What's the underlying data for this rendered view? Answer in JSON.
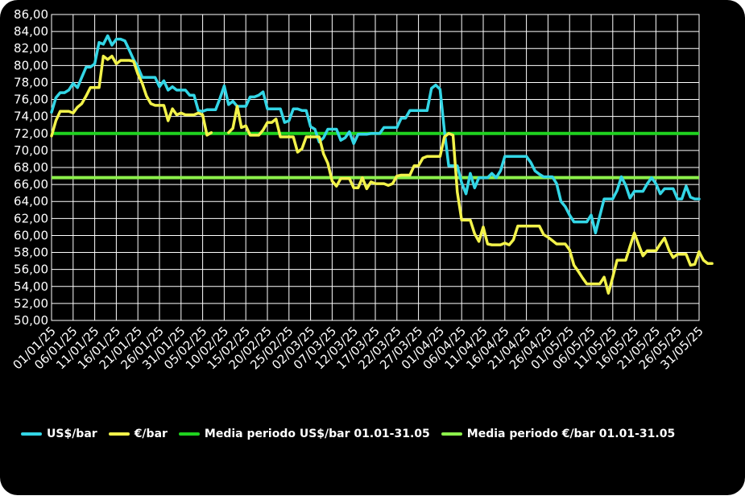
{
  "chart_data": {
    "type": "line",
    "title": "",
    "xlabel": "",
    "ylabel": "",
    "ylim": [
      50,
      86
    ],
    "y_ticks": [
      "50,00",
      "52,00",
      "54,00",
      "56,00",
      "58,00",
      "60,00",
      "62,00",
      "64,00",
      "66,00",
      "68,00",
      "70,00",
      "72,00",
      "74,00",
      "76,00",
      "78,00",
      "80,00",
      "82,00",
      "84,00",
      "86,00"
    ],
    "x_ticks": [
      "01/01/25",
      "06/01/25",
      "11/01/25",
      "16/01/25",
      "21/01/25",
      "26/01/25",
      "31/01/25",
      "05/02/25",
      "10/02/25",
      "15/02/25",
      "20/02/25",
      "25/02/25",
      "02/03/25",
      "07/03/25",
      "12/03/25",
      "17/03/25",
      "22/03/25",
      "27/03/25",
      "01/04/25",
      "06/04/25",
      "11/04/25",
      "16/04/25",
      "21/04/25",
      "26/04/25",
      "01/05/25",
      "06/05/25",
      "11/05/25",
      "16/05/25",
      "21/05/25",
      "26/05/25",
      "31/05/25"
    ],
    "grid": true,
    "legend_position": "bottom",
    "series": [
      {
        "name": "US$/bar",
        "color": "#33d6e6",
        "points": [
          [
            0,
            74.5
          ],
          [
            1,
            76.2
          ],
          [
            2,
            76.8
          ],
          [
            3,
            76.8
          ],
          [
            4,
            77.1
          ],
          [
            5,
            77.9
          ],
          [
            6,
            77.4
          ],
          [
            7,
            78.6
          ],
          [
            8,
            79.8
          ],
          [
            9,
            79.8
          ],
          [
            10,
            80.2
          ],
          [
            11,
            82.7
          ],
          [
            12,
            82.5
          ],
          [
            13,
            83.5
          ],
          [
            14,
            82.4
          ],
          [
            15,
            83.1
          ],
          [
            16,
            83.1
          ],
          [
            17,
            82.9
          ],
          [
            18,
            81.8
          ],
          [
            19,
            80.7
          ],
          [
            20,
            79.8
          ],
          [
            21,
            78.6
          ],
          [
            22,
            78.6
          ],
          [
            23,
            78.6
          ],
          [
            24,
            78.6
          ],
          [
            25,
            77.5
          ],
          [
            26,
            78.2
          ],
          [
            27,
            77.1
          ],
          [
            28,
            77.5
          ],
          [
            29,
            77.1
          ],
          [
            30,
            77.1
          ],
          [
            31,
            77.1
          ],
          [
            32,
            76.5
          ],
          [
            33,
            76.5
          ],
          [
            34,
            74.7
          ],
          [
            35,
            74.6
          ],
          [
            36,
            74.8
          ],
          [
            37,
            74.8
          ],
          [
            38,
            74.8
          ],
          [
            39,
            76.1
          ],
          [
            40,
            77.6
          ],
          [
            41,
            75.4
          ],
          [
            42,
            75.8
          ],
          [
            43,
            75.2
          ],
          [
            44,
            75.2
          ],
          [
            45,
            75.2
          ],
          [
            46,
            76.3
          ],
          [
            47,
            76.3
          ],
          [
            48,
            76.5
          ],
          [
            49,
            76.9
          ],
          [
            50,
            74.9
          ],
          [
            51,
            74.9
          ],
          [
            52,
            74.9
          ],
          [
            53,
            74.9
          ],
          [
            54,
            73.3
          ],
          [
            55,
            73.5
          ],
          [
            56,
            74.9
          ],
          [
            57,
            74.9
          ],
          [
            58,
            74.7
          ],
          [
            59,
            74.7
          ],
          [
            60,
            72.8
          ],
          [
            61,
            72.5
          ],
          [
            62,
            71.0
          ],
          [
            63,
            71.5
          ],
          [
            64,
            72.5
          ],
          [
            65,
            72.5
          ],
          [
            66,
            72.5
          ],
          [
            67,
            71.2
          ],
          [
            68,
            71.5
          ],
          [
            69,
            72.2
          ],
          [
            70,
            70.8
          ],
          [
            71,
            71.9
          ],
          [
            72,
            71.9
          ],
          [
            73,
            71.9
          ],
          [
            74,
            72.0
          ],
          [
            75,
            72.0
          ],
          [
            76,
            72.0
          ],
          [
            77,
            72.7
          ],
          [
            78,
            72.7
          ],
          [
            79,
            72.7
          ],
          [
            80,
            72.7
          ],
          [
            81,
            73.8
          ],
          [
            82,
            73.8
          ],
          [
            83,
            74.7
          ],
          [
            84,
            74.7
          ],
          [
            85,
            74.7
          ],
          [
            86,
            74.7
          ],
          [
            87,
            74.7
          ],
          [
            88,
            77.3
          ],
          [
            89,
            77.7
          ],
          [
            90,
            77.2
          ],
          [
            91,
            72.3
          ],
          [
            92,
            68.2
          ],
          [
            93,
            68.2
          ],
          [
            94,
            68.2
          ],
          [
            95,
            66.2
          ],
          [
            96,
            64.9
          ],
          [
            97,
            67.3
          ],
          [
            98,
            65.6
          ],
          [
            99,
            66.8
          ],
          [
            100,
            66.8
          ],
          [
            101,
            66.8
          ],
          [
            102,
            67.3
          ],
          [
            103,
            66.8
          ],
          [
            104,
            67.6
          ],
          [
            105,
            69.3
          ],
          [
            106,
            69.3
          ],
          [
            107,
            69.3
          ],
          [
            108,
            69.3
          ],
          [
            109,
            69.3
          ],
          [
            110,
            69.3
          ],
          [
            111,
            68.6
          ],
          [
            112,
            67.6
          ],
          [
            113,
            67.2
          ],
          [
            114,
            66.9
          ],
          [
            115,
            66.9
          ],
          [
            116,
            66.9
          ],
          [
            117,
            66.1
          ],
          [
            118,
            64.0
          ],
          [
            119,
            63.4
          ],
          [
            120,
            62.4
          ],
          [
            121,
            61.6
          ],
          [
            122,
            61.6
          ],
          [
            123,
            61.6
          ],
          [
            124,
            61.6
          ],
          [
            125,
            62.4
          ],
          [
            126,
            60.3
          ],
          [
            127,
            62.3
          ],
          [
            128,
            64.3
          ],
          [
            129,
            64.3
          ],
          [
            130,
            64.3
          ],
          [
            131,
            65.3
          ],
          [
            132,
            66.9
          ],
          [
            133,
            65.9
          ],
          [
            134,
            64.4
          ],
          [
            135,
            65.2
          ],
          [
            136,
            65.2
          ],
          [
            137,
            65.2
          ],
          [
            138,
            66.1
          ],
          [
            139,
            66.8
          ],
          [
            140,
            66.1
          ],
          [
            141,
            64.9
          ],
          [
            142,
            65.5
          ],
          [
            143,
            65.5
          ],
          [
            144,
            65.5
          ],
          [
            145,
            64.3
          ],
          [
            146,
            64.3
          ],
          [
            147,
            65.8
          ],
          [
            148,
            64.5
          ],
          [
            149,
            64.3
          ],
          [
            150,
            64.3
          ]
        ]
      },
      {
        "name": "€/bar",
        "color": "#f2f24a",
        "points": [
          [
            0,
            71.7
          ],
          [
            1,
            73.5
          ],
          [
            2,
            74.6
          ],
          [
            3,
            74.6
          ],
          [
            4,
            74.6
          ],
          [
            5,
            74.4
          ],
          [
            6,
            75.1
          ],
          [
            7,
            75.5
          ],
          [
            8,
            76.4
          ],
          [
            9,
            77.4
          ],
          [
            10,
            77.4
          ],
          [
            11,
            77.4
          ],
          [
            12,
            81.1
          ],
          [
            13,
            80.7
          ],
          [
            14,
            81.1
          ],
          [
            15,
            80.2
          ],
          [
            16,
            80.6
          ],
          [
            17,
            80.6
          ],
          [
            18,
            80.6
          ],
          [
            19,
            80.5
          ],
          [
            20,
            79.0
          ],
          [
            21,
            77.9
          ],
          [
            22,
            76.4
          ],
          [
            23,
            75.5
          ],
          [
            24,
            75.3
          ],
          [
            25,
            75.3
          ],
          [
            26,
            75.3
          ],
          [
            27,
            73.5
          ],
          [
            28,
            74.9
          ],
          [
            29,
            74.2
          ],
          [
            30,
            74.4
          ],
          [
            31,
            74.2
          ],
          [
            32,
            74.2
          ],
          [
            33,
            74.2
          ],
          [
            34,
            74.4
          ],
          [
            35,
            74.2
          ],
          [
            36,
            71.8
          ],
          [
            37,
            72.1
          ],
          [
            38,
            null
          ],
          [
            39,
            null
          ],
          [
            40,
            null
          ],
          [
            41,
            72.1
          ],
          [
            42,
            72.6
          ],
          [
            43,
            75.2
          ],
          [
            44,
            72.7
          ],
          [
            45,
            72.9
          ],
          [
            46,
            71.8
          ],
          [
            47,
            71.8
          ],
          [
            48,
            71.8
          ],
          [
            49,
            72.4
          ],
          [
            50,
            73.3
          ],
          [
            51,
            73.3
          ],
          [
            52,
            73.7
          ],
          [
            53,
            71.6
          ],
          [
            54,
            71.6
          ],
          [
            55,
            71.6
          ],
          [
            56,
            71.6
          ],
          [
            57,
            69.8
          ],
          [
            58,
            70.2
          ],
          [
            59,
            71.6
          ],
          [
            60,
            71.6
          ],
          [
            61,
            71.6
          ],
          [
            62,
            71.6
          ],
          [
            63,
            69.6
          ],
          [
            64,
            68.5
          ],
          [
            65,
            66.4
          ],
          [
            66,
            65.8
          ],
          [
            67,
            66.7
          ],
          [
            68,
            66.7
          ],
          [
            69,
            66.7
          ],
          [
            70,
            65.6
          ],
          [
            71,
            65.6
          ],
          [
            72,
            66.8
          ],
          [
            73,
            65.5
          ],
          [
            74,
            66.3
          ],
          [
            75,
            66.1
          ],
          [
            76,
            66.1
          ],
          [
            77,
            66.1
          ],
          [
            78,
            65.9
          ],
          [
            79,
            66.1
          ],
          [
            80,
            67.0
          ],
          [
            81,
            67.1
          ],
          [
            82,
            67.1
          ],
          [
            83,
            67.1
          ],
          [
            84,
            68.2
          ],
          [
            85,
            68.2
          ],
          [
            86,
            69.1
          ],
          [
            87,
            69.3
          ],
          [
            88,
            69.3
          ],
          [
            89,
            69.3
          ],
          [
            90,
            69.3
          ],
          [
            91,
            71.6
          ],
          [
            92,
            72.0
          ],
          [
            93,
            71.8
          ],
          [
            94,
            65.1
          ],
          [
            95,
            61.8
          ],
          [
            96,
            61.8
          ],
          [
            97,
            61.8
          ],
          [
            98,
            60.2
          ],
          [
            99,
            59.3
          ],
          [
            100,
            61.0
          ],
          [
            101,
            59.0
          ],
          [
            102,
            58.9
          ],
          [
            103,
            58.9
          ],
          [
            104,
            58.9
          ],
          [
            105,
            59.1
          ],
          [
            106,
            58.9
          ],
          [
            107,
            59.5
          ],
          [
            108,
            61.1
          ],
          [
            109,
            61.1
          ],
          [
            110,
            61.1
          ],
          [
            111,
            61.1
          ],
          [
            112,
            61.1
          ],
          [
            113,
            61.1
          ],
          [
            114,
            60.1
          ],
          [
            115,
            59.8
          ],
          [
            116,
            59.4
          ],
          [
            117,
            59.0
          ],
          [
            118,
            59.0
          ],
          [
            119,
            59.0
          ],
          [
            120,
            58.3
          ],
          [
            121,
            56.5
          ],
          [
            122,
            55.8
          ],
          [
            123,
            55.0
          ],
          [
            124,
            54.3
          ],
          [
            125,
            54.3
          ],
          [
            126,
            54.3
          ],
          [
            127,
            54.3
          ],
          [
            128,
            55.1
          ],
          [
            129,
            53.2
          ],
          [
            130,
            55.1
          ],
          [
            131,
            57.1
          ],
          [
            132,
            57.1
          ],
          [
            133,
            57.1
          ],
          [
            134,
            58.7
          ],
          [
            135,
            60.3
          ],
          [
            136,
            58.9
          ],
          [
            137,
            57.6
          ],
          [
            138,
            58.2
          ],
          [
            139,
            58.2
          ],
          [
            140,
            58.2
          ],
          [
            141,
            59.0
          ],
          [
            142,
            59.7
          ],
          [
            143,
            58.3
          ],
          [
            144,
            57.4
          ],
          [
            145,
            57.8
          ],
          [
            146,
            57.8
          ],
          [
            147,
            57.8
          ],
          [
            148,
            56.5
          ],
          [
            149,
            56.6
          ],
          [
            150,
            58.1
          ],
          [
            151,
            57.1
          ],
          [
            152,
            56.7
          ],
          [
            153,
            56.7
          ]
        ]
      },
      {
        "name": "Media periodo US$/bar 01.01-31.05",
        "color": "#1fd21f",
        "value": 72.0
      },
      {
        "name": "Media periodo €/bar 01.01-31.05",
        "color": "#8cf04b",
        "value": 66.8
      }
    ]
  }
}
